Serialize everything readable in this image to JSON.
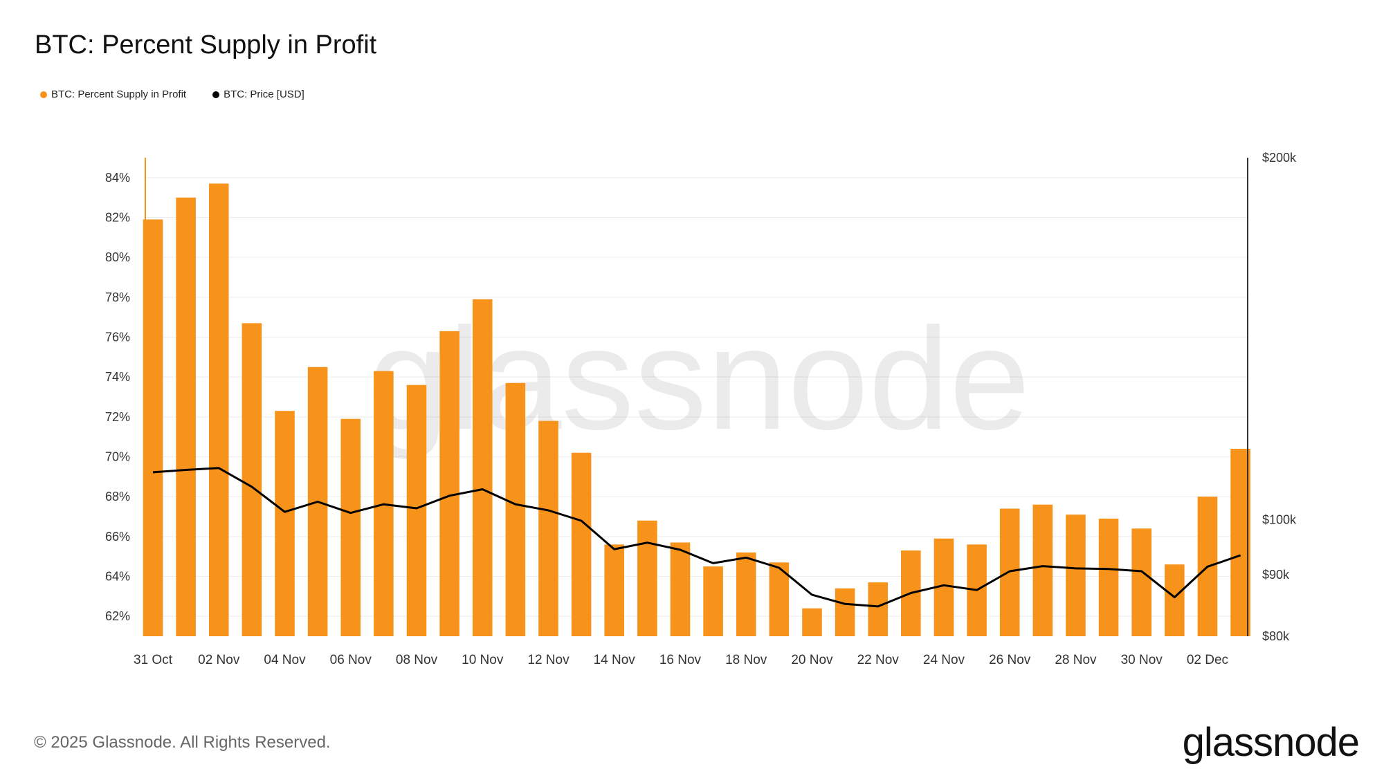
{
  "title": "BTC: Percent Supply in Profit",
  "legend": [
    {
      "label": "BTC: Percent Supply in Profit",
      "color": "#f7931a"
    },
    {
      "label": "BTC: Price [USD]",
      "color": "#000000"
    }
  ],
  "watermark": "glassnode",
  "footer": "© 2025 Glassnode. All Rights Reserved.",
  "logo": "glassnode",
  "chart_data": {
    "type": "bar+line",
    "title": "BTC: Percent Supply in Profit",
    "x": [
      "31 Oct",
      "01 Nov",
      "02 Nov",
      "03 Nov",
      "04 Nov",
      "05 Nov",
      "06 Nov",
      "07 Nov",
      "08 Nov",
      "09 Nov",
      "10 Nov",
      "11 Nov",
      "12 Nov",
      "13 Nov",
      "14 Nov",
      "15 Nov",
      "16 Nov",
      "17 Nov",
      "18 Nov",
      "19 Nov",
      "20 Nov",
      "21 Nov",
      "22 Nov",
      "23 Nov",
      "24 Nov",
      "25 Nov",
      "26 Nov",
      "27 Nov",
      "28 Nov",
      "29 Nov",
      "30 Nov",
      "01 Dec",
      "02 Dec",
      "03 Dec"
    ],
    "x_tick_labels": [
      "31 Oct",
      "02 Nov",
      "04 Nov",
      "06 Nov",
      "08 Nov",
      "10 Nov",
      "12 Nov",
      "14 Nov",
      "16 Nov",
      "18 Nov",
      "20 Nov",
      "22 Nov",
      "24 Nov",
      "26 Nov",
      "28 Nov",
      "30 Nov",
      "02 Dec"
    ],
    "series": [
      {
        "name": "BTC: Percent Supply in Profit",
        "type": "bar",
        "axis": "left",
        "color": "#f7931a",
        "values": [
          81.9,
          83.0,
          83.7,
          76.7,
          72.3,
          74.5,
          71.9,
          74.3,
          73.6,
          76.3,
          77.9,
          73.7,
          71.8,
          70.2,
          65.6,
          66.8,
          65.7,
          64.5,
          65.2,
          64.7,
          62.4,
          63.4,
          63.7,
          65.3,
          65.9,
          65.6,
          67.4,
          67.6,
          67.1,
          66.9,
          66.4,
          64.6,
          68.0,
          70.4
        ]
      },
      {
        "name": "BTC: Price [USD]",
        "type": "line",
        "axis": "right",
        "color": "#000000",
        "values": [
          109500,
          110000,
          110400,
          106500,
          101500,
          103500,
          101300,
          103000,
          102200,
          104700,
          106000,
          103000,
          101800,
          99800,
          94500,
          95700,
          94400,
          92000,
          93000,
          91200,
          86600,
          85100,
          84700,
          86900,
          88200,
          87400,
          90600,
          91500,
          91100,
          91000,
          90600,
          86200,
          91400,
          93400
        ]
      }
    ],
    "y_left": {
      "ticks": [
        "62%",
        "64%",
        "66%",
        "68%",
        "70%",
        "72%",
        "74%",
        "76%",
        "78%",
        "80%",
        "82%",
        "84%"
      ],
      "range": [
        61,
        85
      ]
    },
    "y_right": {
      "ticks": [
        "$80k",
        "$90k",
        "$100k",
        "$200k"
      ],
      "scale": "log",
      "range": [
        80000,
        200000
      ]
    },
    "grid": true
  }
}
